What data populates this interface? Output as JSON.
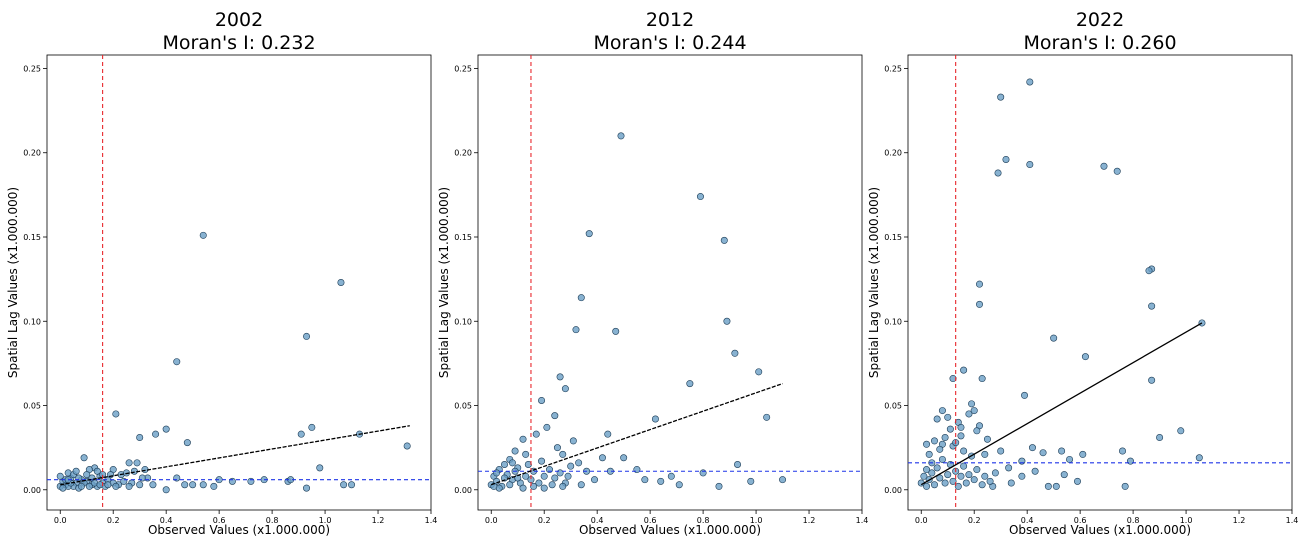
{
  "chart_data": [
    {
      "type": "scatter",
      "title_line1": "2002",
      "title_line2": "Moran's I: 0.232",
      "xlabel": "Observed Values (x1.000.000)",
      "ylabel": "Spatial Lag Values (x1.000.000)",
      "xlim": [
        -0.05,
        1.4
      ],
      "ylim": [
        -0.012,
        0.258
      ],
      "xticks": [
        0.0,
        0.2,
        0.4,
        0.6,
        0.8,
        1.0,
        1.2,
        1.4
      ],
      "xtick_labels": [
        "0.0",
        "0.2",
        "0.4",
        "0.6",
        "0.8",
        "1.0",
        "1.2",
        "1.4"
      ],
      "yticks": [
        0.0,
        0.05,
        0.1,
        0.15,
        0.2,
        0.25
      ],
      "ytick_labels": [
        "0.00",
        "0.05",
        "0.10",
        "0.15",
        "0.20",
        "0.25"
      ],
      "mean_x": 0.16,
      "mean_y": 0.006,
      "fit_line": {
        "x": [
          0.0,
          1.32
        ],
        "y": [
          0.003,
          0.038
        ],
        "style": "dashed"
      },
      "point_color": "#6a9fc6",
      "mean_x_color": "#e8282d",
      "mean_y_color": "#1f35e8",
      "points": [
        [
          0.54,
          0.151
        ],
        [
          1.06,
          0.123
        ],
        [
          0.93,
          0.091
        ],
        [
          0.44,
          0.076
        ],
        [
          0.21,
          0.045
        ],
        [
          0.4,
          0.036
        ],
        [
          0.95,
          0.037
        ],
        [
          0.36,
          0.033
        ],
        [
          0.91,
          0.033
        ],
        [
          1.13,
          0.033
        ],
        [
          0.3,
          0.031
        ],
        [
          0.48,
          0.028
        ],
        [
          0.98,
          0.013
        ],
        [
          1.31,
          0.026
        ],
        [
          0.26,
          0.016
        ],
        [
          0.29,
          0.016
        ],
        [
          0.32,
          0.012
        ],
        [
          0.6,
          0.006
        ],
        [
          0.65,
          0.005
        ],
        [
          0.72,
          0.005
        ],
        [
          0.77,
          0.006
        ],
        [
          0.86,
          0.005
        ],
        [
          0.87,
          0.006
        ],
        [
          0.93,
          0.001
        ],
        [
          1.07,
          0.003
        ],
        [
          1.1,
          0.003
        ],
        [
          0.58,
          0.002
        ],
        [
          0.5,
          0.003
        ],
        [
          0.54,
          0.003
        ],
        [
          0.44,
          0.007
        ],
        [
          0.47,
          0.003
        ],
        [
          0.4,
          0.0
        ],
        [
          0.35,
          0.003
        ],
        [
          0.33,
          0.007
        ],
        [
          0.09,
          0.019
        ],
        [
          0.13,
          0.013
        ],
        [
          0.11,
          0.012
        ],
        [
          0.2,
          0.012
        ],
        [
          0.23,
          0.009
        ],
        [
          0.25,
          0.01
        ],
        [
          0.27,
          0.004
        ],
        [
          0.22,
          0.003
        ],
        [
          0.18,
          0.006
        ],
        [
          0.15,
          0.008
        ],
        [
          0.16,
          0.004
        ],
        [
          0.14,
          0.002
        ],
        [
          0.12,
          0.003
        ],
        [
          0.1,
          0.005
        ],
        [
          0.08,
          0.006
        ],
        [
          0.06,
          0.004
        ],
        [
          0.05,
          0.002
        ],
        [
          0.04,
          0.007
        ],
        [
          0.03,
          0.01
        ],
        [
          0.02,
          0.003
        ],
        [
          0.01,
          0.005
        ],
        [
          0.0,
          0.002
        ],
        [
          0.0,
          0.008
        ],
        [
          0.02,
          0.006
        ],
        [
          0.03,
          0.002
        ],
        [
          0.05,
          0.009
        ],
        [
          0.06,
          0.011
        ],
        [
          0.07,
          0.001
        ],
        [
          0.09,
          0.004
        ],
        [
          0.1,
          0.009
        ],
        [
          0.11,
          0.002
        ],
        [
          0.12,
          0.007
        ],
        [
          0.13,
          0.004
        ],
        [
          0.14,
          0.011
        ],
        [
          0.15,
          0.003
        ],
        [
          0.17,
          0.002
        ],
        [
          0.19,
          0.009
        ],
        [
          0.2,
          0.004
        ],
        [
          0.21,
          0.002
        ],
        [
          0.24,
          0.005
        ],
        [
          0.26,
          0.002
        ],
        [
          0.28,
          0.011
        ],
        [
          0.3,
          0.003
        ],
        [
          0.31,
          0.007
        ],
        [
          0.04,
          0.004
        ],
        [
          0.07,
          0.007
        ],
        [
          0.08,
          0.002
        ],
        [
          0.16,
          0.009
        ],
        [
          0.18,
          0.003
        ],
        [
          0.01,
          0.001
        ],
        [
          0.03,
          0.006
        ]
      ]
    },
    {
      "type": "scatter",
      "title_line1": "2012",
      "title_line2": "Moran's I: 0.244",
      "xlabel": "Observed Values (x1.000.000)",
      "ylabel": "Spatial Lag Values (x1.000.000)",
      "xlim": [
        -0.05,
        1.4
      ],
      "ylim": [
        -0.012,
        0.258
      ],
      "xticks": [
        0.0,
        0.2,
        0.4,
        0.6,
        0.8,
        1.0,
        1.2,
        1.4
      ],
      "xtick_labels": [
        "0.0",
        "0.2",
        "0.4",
        "0.6",
        "0.8",
        "1.0",
        "1.2",
        "1.4"
      ],
      "yticks": [
        0.0,
        0.05,
        0.1,
        0.15,
        0.2,
        0.25
      ],
      "ytick_labels": [
        "0.00",
        "0.05",
        "0.10",
        "0.15",
        "0.20",
        "0.25"
      ],
      "mean_x": 0.15,
      "mean_y": 0.011,
      "fit_line": {
        "x": [
          0.0,
          1.1
        ],
        "y": [
          0.003,
          0.063
        ],
        "style": "dashed"
      },
      "point_color": "#6a9fc6",
      "mean_x_color": "#e8282d",
      "mean_y_color": "#1f35e8",
      "points": [
        [
          0.49,
          0.21
        ],
        [
          0.79,
          0.174
        ],
        [
          0.37,
          0.152
        ],
        [
          0.88,
          0.148
        ],
        [
          0.34,
          0.114
        ],
        [
          0.89,
          0.1
        ],
        [
          0.32,
          0.095
        ],
        [
          0.47,
          0.094
        ],
        [
          0.92,
          0.081
        ],
        [
          1.01,
          0.07
        ],
        [
          0.26,
          0.067
        ],
        [
          0.75,
          0.063
        ],
        [
          0.28,
          0.06
        ],
        [
          0.19,
          0.053
        ],
        [
          1.04,
          0.043
        ],
        [
          0.24,
          0.044
        ],
        [
          0.62,
          0.042
        ],
        [
          0.21,
          0.037
        ],
        [
          0.17,
          0.033
        ],
        [
          0.44,
          0.033
        ],
        [
          0.25,
          0.025
        ],
        [
          0.31,
          0.029
        ],
        [
          0.27,
          0.021
        ],
        [
          0.33,
          0.016
        ],
        [
          0.36,
          0.011
        ],
        [
          0.39,
          0.006
        ],
        [
          0.42,
          0.019
        ],
        [
          0.5,
          0.019
        ],
        [
          0.45,
          0.011
        ],
        [
          0.55,
          0.012
        ],
        [
          0.58,
          0.006
        ],
        [
          0.64,
          0.005
        ],
        [
          0.68,
          0.008
        ],
        [
          0.71,
          0.003
        ],
        [
          0.8,
          0.01
        ],
        [
          0.86,
          0.002
        ],
        [
          0.93,
          0.015
        ],
        [
          0.98,
          0.005
        ],
        [
          1.1,
          0.006
        ],
        [
          0.12,
          0.03
        ],
        [
          0.09,
          0.023
        ],
        [
          0.07,
          0.018
        ],
        [
          0.05,
          0.015
        ],
        [
          0.03,
          0.012
        ],
        [
          0.01,
          0.008
        ],
        [
          0.0,
          0.003
        ],
        [
          0.02,
          0.005
        ],
        [
          0.04,
          0.002
        ],
        [
          0.06,
          0.009
        ],
        [
          0.08,
          0.006
        ],
        [
          0.1,
          0.013
        ],
        [
          0.11,
          0.004
        ],
        [
          0.13,
          0.008
        ],
        [
          0.14,
          0.015
        ],
        [
          0.15,
          0.006
        ],
        [
          0.16,
          0.011
        ],
        [
          0.18,
          0.004
        ],
        [
          0.19,
          0.017
        ],
        [
          0.2,
          0.008
        ],
        [
          0.22,
          0.012
        ],
        [
          0.23,
          0.003
        ],
        [
          0.24,
          0.007
        ],
        [
          0.26,
          0.01
        ],
        [
          0.28,
          0.004
        ],
        [
          0.29,
          0.008
        ],
        [
          0.3,
          0.014
        ],
        [
          0.03,
          0.001
        ],
        [
          0.05,
          0.007
        ],
        [
          0.07,
          0.003
        ],
        [
          0.09,
          0.011
        ],
        [
          0.12,
          0.001
        ],
        [
          0.16,
          0.002
        ],
        [
          0.2,
          0.001
        ],
        [
          0.27,
          0.002
        ],
        [
          0.34,
          0.003
        ],
        [
          0.01,
          0.002
        ],
        [
          0.02,
          0.01
        ],
        [
          0.08,
          0.016
        ],
        [
          0.13,
          0.021
        ],
        [
          0.1,
          0.007
        ]
      ]
    },
    {
      "type": "scatter",
      "title_line1": "2022",
      "title_line2": "Moran's I: 0.260",
      "xlabel": "Observed Values (x1.000.000)",
      "ylabel": "Spatial Lag Values (x1.000.000)",
      "xlim": [
        -0.05,
        1.4
      ],
      "ylim": [
        -0.012,
        0.258
      ],
      "xticks": [
        0.0,
        0.2,
        0.4,
        0.6,
        0.8,
        1.0,
        1.2,
        1.4
      ],
      "xtick_labels": [
        "0.0",
        "0.2",
        "0.4",
        "0.6",
        "0.8",
        "1.0",
        "1.2",
        "1.4"
      ],
      "yticks": [
        0.0,
        0.05,
        0.1,
        0.15,
        0.2,
        0.25
      ],
      "ytick_labels": [
        "0.00",
        "0.05",
        "0.10",
        "0.15",
        "0.20",
        "0.25"
      ],
      "mean_x": 0.13,
      "mean_y": 0.016,
      "fit_line": {
        "x": [
          0.0,
          1.06
        ],
        "y": [
          0.003,
          0.099
        ],
        "style": "solid"
      },
      "point_color": "#6a9fc6",
      "mean_x_color": "#e8282d",
      "mean_y_color": "#1f35e8",
      "points": [
        [
          0.41,
          0.242
        ],
        [
          0.3,
          0.233
        ],
        [
          0.32,
          0.196
        ],
        [
          0.41,
          0.193
        ],
        [
          0.69,
          0.192
        ],
        [
          0.74,
          0.189
        ],
        [
          0.29,
          0.188
        ],
        [
          0.87,
          0.131
        ],
        [
          0.86,
          0.13
        ],
        [
          0.22,
          0.122
        ],
        [
          0.22,
          0.11
        ],
        [
          0.87,
          0.109
        ],
        [
          1.06,
          0.099
        ],
        [
          0.5,
          0.09
        ],
        [
          0.62,
          0.079
        ],
        [
          0.16,
          0.071
        ],
        [
          0.23,
          0.066
        ],
        [
          0.12,
          0.066
        ],
        [
          0.87,
          0.065
        ],
        [
          0.39,
          0.056
        ],
        [
          0.19,
          0.051
        ],
        [
          0.2,
          0.047
        ],
        [
          0.08,
          0.047
        ],
        [
          0.18,
          0.045
        ],
        [
          0.1,
          0.043
        ],
        [
          0.06,
          0.042
        ],
        [
          0.14,
          0.04
        ],
        [
          0.22,
          0.038
        ],
        [
          0.15,
          0.037
        ],
        [
          0.21,
          0.035
        ],
        [
          0.98,
          0.035
        ],
        [
          0.25,
          0.03
        ],
        [
          0.9,
          0.031
        ],
        [
          0.05,
          0.029
        ],
        [
          0.08,
          0.027
        ],
        [
          0.12,
          0.026
        ],
        [
          0.16,
          0.023
        ],
        [
          0.24,
          0.021
        ],
        [
          0.3,
          0.023
        ],
        [
          0.42,
          0.025
        ],
        [
          0.46,
          0.022
        ],
        [
          0.53,
          0.023
        ],
        [
          0.56,
          0.018
        ],
        [
          0.61,
          0.021
        ],
        [
          0.76,
          0.023
        ],
        [
          0.79,
          0.017
        ],
        [
          1.05,
          0.019
        ],
        [
          0.38,
          0.017
        ],
        [
          0.33,
          0.013
        ],
        [
          0.28,
          0.01
        ],
        [
          0.27,
          0.002
        ],
        [
          0.34,
          0.004
        ],
        [
          0.38,
          0.008
        ],
        [
          0.43,
          0.011
        ],
        [
          0.48,
          0.002
        ],
        [
          0.51,
          0.002
        ],
        [
          0.54,
          0.009
        ],
        [
          0.59,
          0.005
        ],
        [
          0.77,
          0.002
        ],
        [
          0.03,
          0.021
        ],
        [
          0.04,
          0.016
        ],
        [
          0.02,
          0.012
        ],
        [
          0.0,
          0.004
        ],
        [
          0.01,
          0.008
        ],
        [
          0.02,
          0.002
        ],
        [
          0.03,
          0.006
        ],
        [
          0.04,
          0.01
        ],
        [
          0.05,
          0.003
        ],
        [
          0.06,
          0.013
        ],
        [
          0.07,
          0.007
        ],
        [
          0.08,
          0.018
        ],
        [
          0.09,
          0.004
        ],
        [
          0.1,
          0.009
        ],
        [
          0.11,
          0.015
        ],
        [
          0.12,
          0.005
        ],
        [
          0.13,
          0.011
        ],
        [
          0.14,
          0.002
        ],
        [
          0.15,
          0.008
        ],
        [
          0.16,
          0.014
        ],
        [
          0.17,
          0.004
        ],
        [
          0.18,
          0.009
        ],
        [
          0.19,
          0.02
        ],
        [
          0.2,
          0.006
        ],
        [
          0.21,
          0.012
        ],
        [
          0.23,
          0.003
        ],
        [
          0.24,
          0.008
        ],
        [
          0.26,
          0.005
        ],
        [
          0.09,
          0.031
        ],
        [
          0.11,
          0.036
        ],
        [
          0.07,
          0.024
        ],
        [
          0.13,
          0.028
        ],
        [
          0.15,
          0.032
        ],
        [
          0.02,
          0.027
        ]
      ]
    }
  ]
}
